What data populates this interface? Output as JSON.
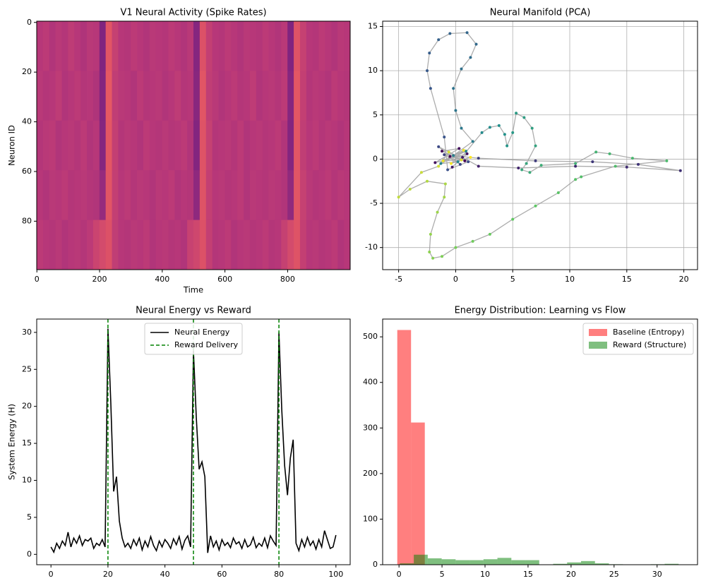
{
  "chart_data": [
    {
      "type": "heatmap",
      "title": "V1 Neural Activity (Spike Rates)",
      "xlabel": "Time",
      "ylabel": "Neuron ID",
      "xlim": [
        -0.5,
        999.5
      ],
      "ylim": [
        99.5,
        -0.5
      ],
      "xticks": [
        0,
        200,
        400,
        600,
        800
      ],
      "yticks": [
        0,
        20,
        40,
        60,
        80
      ],
      "colorscale": [
        "#3b0f70",
        "#721f81",
        "#b73779",
        "#f1605d",
        "#feb078"
      ],
      "z": [
        [
          0.5,
          0.52,
          0.48,
          0.51,
          0.49,
          0.53,
          0.5,
          0.47,
          0.51,
          0.5,
          0.3,
          0.68,
          0.56,
          0.5,
          0.49,
          0.52,
          0.5,
          0.48,
          0.51,
          0.5,
          0.49,
          0.52,
          0.5,
          0.48,
          0.51,
          0.32,
          0.66,
          0.55,
          0.5,
          0.49,
          0.52,
          0.5,
          0.48,
          0.51,
          0.5,
          0.49,
          0.52,
          0.5,
          0.48,
          0.51,
          0.3,
          0.67,
          0.56,
          0.5,
          0.49,
          0.52,
          0.5,
          0.48,
          0.51,
          0.5
        ],
        [
          0.51,
          0.49,
          0.5,
          0.53,
          0.48,
          0.5,
          0.52,
          0.49,
          0.5,
          0.47,
          0.31,
          0.7,
          0.54,
          0.51,
          0.5,
          0.48,
          0.52,
          0.49,
          0.5,
          0.51,
          0.48,
          0.5,
          0.53,
          0.49,
          0.5,
          0.33,
          0.68,
          0.54,
          0.51,
          0.48,
          0.5,
          0.52,
          0.49,
          0.5,
          0.53,
          0.48,
          0.5,
          0.51,
          0.49,
          0.52,
          0.32,
          0.69,
          0.55,
          0.49,
          0.51,
          0.5,
          0.48,
          0.52,
          0.5,
          0.49
        ],
        [
          0.49,
          0.51,
          0.52,
          0.48,
          0.5,
          0.51,
          0.49,
          0.52,
          0.48,
          0.5,
          0.32,
          0.69,
          0.55,
          0.49,
          0.51,
          0.5,
          0.48,
          0.52,
          0.5,
          0.49,
          0.51,
          0.49,
          0.5,
          0.52,
          0.48,
          0.31,
          0.67,
          0.56,
          0.49,
          0.5,
          0.51,
          0.49,
          0.52,
          0.48,
          0.5,
          0.51,
          0.49,
          0.5,
          0.52,
          0.48,
          0.31,
          0.68,
          0.54,
          0.5,
          0.52,
          0.49,
          0.51,
          0.5,
          0.48,
          0.5
        ],
        [
          0.5,
          0.48,
          0.51,
          0.5,
          0.52,
          0.49,
          0.5,
          0.51,
          0.49,
          0.48,
          0.38,
          0.68,
          0.55,
          0.5,
          0.52,
          0.49,
          0.51,
          0.5,
          0.48,
          0.51,
          0.5,
          0.52,
          0.48,
          0.5,
          0.49,
          0.35,
          0.67,
          0.55,
          0.5,
          0.51,
          0.49,
          0.5,
          0.52,
          0.48,
          0.51,
          0.5,
          0.49,
          0.51,
          0.5,
          0.48,
          0.36,
          0.68,
          0.56,
          0.51,
          0.49,
          0.5,
          0.52,
          0.49,
          0.51,
          0.5
        ],
        [
          0.52,
          0.5,
          0.49,
          0.51,
          0.48,
          0.5,
          0.51,
          0.49,
          0.52,
          0.58,
          0.62,
          0.66,
          0.54,
          0.5,
          0.49,
          0.51,
          0.5,
          0.52,
          0.48,
          0.5,
          0.51,
          0.49,
          0.5,
          0.48,
          0.57,
          0.6,
          0.66,
          0.55,
          0.49,
          0.5,
          0.52,
          0.48,
          0.5,
          0.51,
          0.49,
          0.5,
          0.52,
          0.49,
          0.5,
          0.56,
          0.62,
          0.67,
          0.55,
          0.5,
          0.51,
          0.49,
          0.5,
          0.52,
          0.48,
          0.5
        ]
      ]
    },
    {
      "type": "scatter",
      "title": "Neural Manifold (PCA)",
      "grid": true,
      "xlim": [
        -6.4,
        21.2
      ],
      "ylim": [
        -12.5,
        15.6
      ],
      "xticks": [
        -5,
        0,
        5,
        10,
        15,
        20
      ],
      "yticks": [
        -10,
        -5,
        0,
        5,
        10,
        15
      ],
      "line_color": "#999999",
      "colorscale": [
        "#440154",
        "#3b528b",
        "#21918c",
        "#5ec962",
        "#fde725"
      ],
      "series": [
        {
          "x": [
            -0.5,
            0.8,
            -1.2,
            0.3,
            -1.8,
            1.0,
            -0.3,
            0.6,
            2,
            5.5,
            10.5,
            15,
            19.7,
            16,
            12,
            7,
            2,
            -1,
            0.4,
            -1.5,
            1.1,
            -0.7,
            -1,
            -2.2,
            -2.5,
            -2.3,
            -1.5,
            -0.5,
            1,
            1.8,
            1.3,
            0.5,
            -0.2,
            0,
            0.5,
            1.5,
            -0.2,
            0.9,
            -1.3,
            0.2,
            2.3,
            3,
            3.8,
            4.3,
            4.5,
            5,
            5.3,
            6,
            6.7,
            7,
            6.2,
            5.8,
            6.5,
            7.5,
            10.5,
            12.3,
            13.5,
            15.5,
            18.5,
            14,
            11,
            10.5,
            9,
            7,
            5,
            3,
            1.5,
            0,
            -1.2,
            -2,
            -2.3,
            -2.2,
            -1.6,
            -1,
            -0.9,
            -2.5,
            -4,
            -5,
            -3,
            -1.5,
            -0.6,
            0.5,
            -1.1,
            0.7,
            -0.4,
            1.3
          ],
          "y": [
            0.3,
            -0.2,
            0.9,
            1.2,
            -0.4,
            0.6,
            -0.9,
            0.2,
            -0.8,
            -1,
            -0.8,
            -0.9,
            -1.3,
            -0.6,
            -0.3,
            -0.2,
            0.1,
            0.5,
            -0.6,
            1.4,
            -0.3,
            -1.2,
            2.5,
            8,
            10,
            12,
            13.5,
            14.2,
            14.3,
            13,
            11.5,
            10.2,
            8,
            5.5,
            3.5,
            2,
            0.4,
            0.9,
            -0.5,
            -0.3,
            3,
            3.6,
            3.8,
            2.8,
            1.5,
            3,
            5.2,
            4.7,
            3.5,
            1.5,
            -0.5,
            -1.2,
            -1.5,
            -0.7,
            -0.5,
            0.8,
            0.6,
            0.1,
            -0.2,
            -0.8,
            -2,
            -2.3,
            -3.8,
            -5.3,
            -6.8,
            -8.5,
            -9.3,
            -10,
            -11,
            -11.2,
            -10.5,
            -8.5,
            -6,
            -4.3,
            -2.8,
            -2.5,
            -3.4,
            -4.3,
            -1.5,
            -0.8,
            0.8,
            -0.1,
            -0.2,
            1.0,
            -0.5,
            0.2
          ]
        }
      ]
    },
    {
      "type": "line",
      "title": "Neural Energy vs Reward",
      "ylabel": "System Energy (H)",
      "legend": "upper center",
      "xlim": [
        -5,
        105
      ],
      "ylim": [
        -1.4,
        31.8
      ],
      "xticks": [
        0,
        20,
        40,
        60,
        80,
        100
      ],
      "yticks": [
        0,
        5,
        10,
        15,
        20,
        25,
        30
      ],
      "series": [
        {
          "name": "Neural Energy",
          "color": "#000000",
          "x": [
            0,
            1,
            2,
            3,
            4,
            5,
            6,
            7,
            8,
            9,
            10,
            11,
            12,
            13,
            14,
            15,
            16,
            17,
            18,
            19,
            20,
            21,
            22,
            23,
            24,
            25,
            26,
            27,
            28,
            29,
            30,
            31,
            32,
            33,
            34,
            35,
            36,
            37,
            38,
            39,
            40,
            41,
            42,
            43,
            44,
            45,
            46,
            47,
            48,
            49,
            50,
            51,
            52,
            53,
            54,
            55,
            56,
            57,
            58,
            59,
            60,
            61,
            62,
            63,
            64,
            65,
            66,
            67,
            68,
            69,
            70,
            71,
            72,
            73,
            74,
            75,
            76,
            77,
            78,
            79,
            80,
            81,
            82,
            83,
            84,
            85,
            86,
            87,
            88,
            89,
            90,
            91,
            92,
            93,
            94,
            95,
            96,
            97,
            98,
            99,
            100
          ],
          "values": [
            1.0,
            0.3,
            1.5,
            0.8,
            1.8,
            1.2,
            3.0,
            1.0,
            2.2,
            1.5,
            2.5,
            1.2,
            2.0,
            1.8,
            2.2,
            0.8,
            1.5,
            1.2,
            2.0,
            1.0,
            30.5,
            20.5,
            8.5,
            10.5,
            4.5,
            2.2,
            1.0,
            1.5,
            0.8,
            2.0,
            1.2,
            2.2,
            0.6,
            1.8,
            1.0,
            2.4,
            1.2,
            0.5,
            1.8,
            1.0,
            2.0,
            1.5,
            0.8,
            2.1,
            1.3,
            2.4,
            0.7,
            1.9,
            2.5,
            1.0,
            27.5,
            18.5,
            11.5,
            12.5,
            10.5,
            0.2,
            2.5,
            1.0,
            1.8,
            0.6,
            2.0,
            1.2,
            1.6,
            0.9,
            2.2,
            1.4,
            1.7,
            0.8,
            2.0,
            1.0,
            1.3,
            2.3,
            0.9,
            1.5,
            1.1,
            2.2,
            0.9,
            2.5,
            1.8,
            1.2,
            30.0,
            19.5,
            12.0,
            8.0,
            13.0,
            15.5,
            1.5,
            0.5,
            2.0,
            1.0,
            2.3,
            1.2,
            1.8,
            0.7,
            2.0,
            1.0,
            3.2,
            2.0,
            0.8,
            1.0,
            2.6
          ]
        },
        {
          "name": "Reward Delivery",
          "color": "#008000",
          "linestyle": "dashed",
          "x": [
            20,
            50,
            80
          ]
        }
      ]
    },
    {
      "type": "histogram",
      "title": "Energy Distribution: Learning vs Flow",
      "legend": "upper right",
      "xlim": [
        -1.9,
        34.7
      ],
      "ylim": [
        0,
        539
      ],
      "xticks": [
        0,
        5,
        10,
        15,
        20,
        25,
        30
      ],
      "yticks": [
        0,
        100,
        200,
        300,
        400,
        500
      ],
      "series": [
        {
          "name": "Baseline (Entropy)",
          "color": "#ff0000",
          "alpha": 0.5,
          "bins": [
            -0.2,
            1.4,
            3.0
          ],
          "counts": [
            515,
            312
          ]
        },
        {
          "name": "Reward (Structure)",
          "color": "#008000",
          "alpha": 0.5,
          "bins": [
            0.1,
            1.72,
            3.34,
            4.96,
            6.58,
            8.2,
            9.82,
            11.44,
            13.06,
            14.68,
            16.3,
            17.92,
            19.54,
            21.16,
            22.78,
            24.4,
            26.02,
            27.64,
            29.26,
            30.88,
            32.5
          ],
          "counts": [
            3,
            22,
            14,
            12,
            10,
            10,
            12,
            15,
            10,
            10,
            0,
            2,
            5,
            8,
            3,
            1,
            0,
            0,
            1,
            2
          ]
        }
      ]
    }
  ]
}
